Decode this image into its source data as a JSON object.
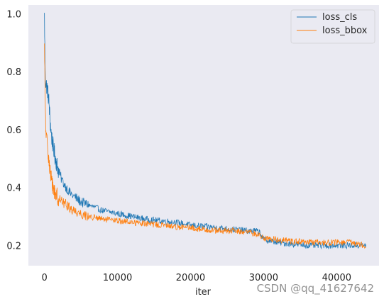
{
  "chart_data": {
    "type": "line",
    "title": "",
    "xlabel": "iter",
    "ylabel": "",
    "xlim": [
      -2200,
      45800
    ],
    "ylim": [
      0.13,
      1.03
    ],
    "xticks": [
      0,
      10000,
      20000,
      30000,
      40000
    ],
    "yticks": [
      0.2,
      0.4,
      0.6,
      0.8,
      1.0
    ],
    "xtick_labels": [
      "0",
      "10000",
      "20000",
      "30000",
      "40000"
    ],
    "ytick_labels": [
      "0.2",
      "0.4",
      "0.6",
      "0.8",
      "1.0"
    ],
    "grid": false,
    "background": "#eaeaf2",
    "legend_position": "top-right",
    "series": [
      {
        "name": "loss_cls",
        "color": "#1f77b4",
        "x": [
          0,
          100,
          200,
          400,
          600,
          800,
          1000,
          1200,
          1500,
          2000,
          2500,
          3000,
          3500,
          4000,
          5000,
          6000,
          7000,
          8000,
          10000,
          12000,
          14000,
          16000,
          18000,
          20000,
          22000,
          24000,
          26000,
          28000,
          29000,
          29500,
          30000,
          32000,
          34000,
          36000,
          38000,
          40000,
          42000,
          43000,
          44000
        ],
        "values": [
          0.99,
          0.78,
          0.76,
          0.74,
          0.7,
          0.62,
          0.57,
          0.54,
          0.5,
          0.45,
          0.42,
          0.4,
          0.38,
          0.37,
          0.35,
          0.34,
          0.33,
          0.32,
          0.31,
          0.3,
          0.29,
          0.285,
          0.28,
          0.27,
          0.265,
          0.26,
          0.255,
          0.25,
          0.25,
          0.245,
          0.22,
          0.21,
          0.205,
          0.2,
          0.2,
          0.2,
          0.2,
          0.2,
          0.2
        ]
      },
      {
        "name": "loss_bbox",
        "color": "#ff7f0e",
        "x": [
          0,
          100,
          200,
          400,
          600,
          800,
          1000,
          1200,
          1500,
          2000,
          2500,
          3000,
          3500,
          4000,
          5000,
          6000,
          7000,
          8000,
          10000,
          12000,
          14000,
          16000,
          18000,
          20000,
          22000,
          24000,
          26000,
          28000,
          29000,
          29500,
          30000,
          32000,
          34000,
          36000,
          38000,
          40000,
          42000,
          43000,
          44000
        ],
        "values": [
          0.88,
          0.7,
          0.58,
          0.55,
          0.5,
          0.45,
          0.42,
          0.4,
          0.38,
          0.36,
          0.35,
          0.34,
          0.33,
          0.32,
          0.31,
          0.3,
          0.295,
          0.29,
          0.285,
          0.28,
          0.275,
          0.27,
          0.265,
          0.26,
          0.255,
          0.25,
          0.25,
          0.245,
          0.24,
          0.235,
          0.225,
          0.22,
          0.215,
          0.21,
          0.21,
          0.21,
          0.21,
          0.205,
          0.2
        ]
      }
    ]
  },
  "watermark": "CSDN @qq_41627642"
}
